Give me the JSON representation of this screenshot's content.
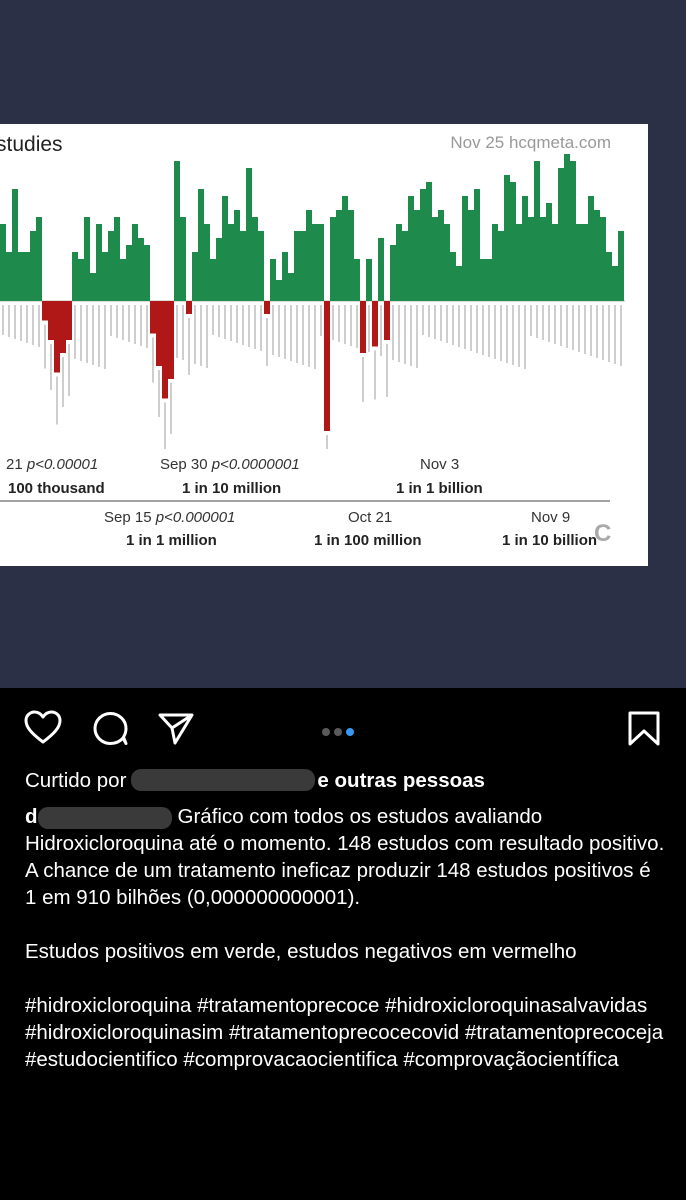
{
  "chart": {
    "title": "studies",
    "watermark": "Nov 25 hcqmeta.com",
    "corner_letter": "C",
    "milestones_top": [
      {
        "date": "21",
        "p": "p<0.00001",
        "odds": "100 thousand"
      },
      {
        "date": "Sep 30",
        "p": "p<0.0000001",
        "odds": "1 in 10 million"
      },
      {
        "date": "Nov 3",
        "p": "",
        "odds": "1 in 1 billion"
      }
    ],
    "milestones_bottom": [
      {
        "date": "Sep 15",
        "p": "p<0.000001",
        "odds": "1 in 1 million"
      },
      {
        "date": "Oct 21",
        "p": "",
        "odds": "1 in 100 million"
      },
      {
        "date": "Nov 9",
        "p": "",
        "odds": "1 in 10 billion"
      }
    ],
    "colors": {
      "positive": "#1e8a4c",
      "negative": "#b01818"
    }
  },
  "chart_data": {
    "type": "bar",
    "title": "studies",
    "values": [
      0.55,
      0.35,
      0.8,
      0.35,
      0.35,
      0.5,
      0.6,
      -0.15,
      -0.3,
      -0.55,
      -0.4,
      -0.3,
      0.35,
      0.3,
      0.6,
      0.2,
      0.55,
      0.35,
      0.5,
      0.6,
      0.3,
      0.4,
      0.55,
      0.45,
      0.4,
      -0.25,
      -0.5,
      -0.75,
      -0.6,
      1.0,
      0.6,
      -0.1,
      0.35,
      0.8,
      0.55,
      0.3,
      0.45,
      0.75,
      0.55,
      0.65,
      0.5,
      0.95,
      0.6,
      0.5,
      -0.1,
      0.3,
      0.15,
      0.35,
      0.2,
      0.5,
      0.5,
      0.65,
      0.55,
      0.55,
      -1.0,
      0.6,
      0.65,
      0.75,
      0.65,
      0.3,
      -0.4,
      0.3,
      -0.35,
      0.45,
      -0.3,
      0.4,
      0.55,
      0.5,
      0.75,
      0.65,
      0.8,
      0.85,
      0.6,
      0.65,
      0.55,
      0.35,
      0.25,
      0.75,
      0.65,
      0.8,
      0.3,
      0.3,
      0.55,
      0.5,
      0.9,
      0.85,
      0.55,
      0.75,
      0.6,
      1.0,
      0.6,
      0.7,
      0.55,
      0.95,
      1.05,
      1.0,
      0.55,
      0.55,
      0.75,
      0.65,
      0.6,
      0.35,
      0.25,
      0.5
    ],
    "xlabel": "",
    "ylabel": ""
  },
  "actions": {
    "like": "heart-icon",
    "comment": "comment-icon",
    "share": "send-icon",
    "save": "bookmark-icon"
  },
  "caption": {
    "liked_prefix": "Curtido por",
    "liked_suffix": "e outras pessoas",
    "username_initial": "d",
    "text": "Gráfico com todos os estudos avaliando Hidroxicloroquina até o momento. 148 estudos com resultado positivo. A chance de um tratamento ineficaz produzir 148 estudos positivos é 1 em 910 bilhões (0,000000000001).",
    "text2": "Estudos positivos em verde, estudos negativos em vermelho",
    "hashtags": "#hidroxicloroquina #tratamentoprecoce #hidroxicloroquinasalvavidas #hidroxicloroquinasim #tratamentoprecocecovid #tratamentoprecoceja #estudocientifico #comprovacaocientifica #comprovaçãocientífica"
  }
}
